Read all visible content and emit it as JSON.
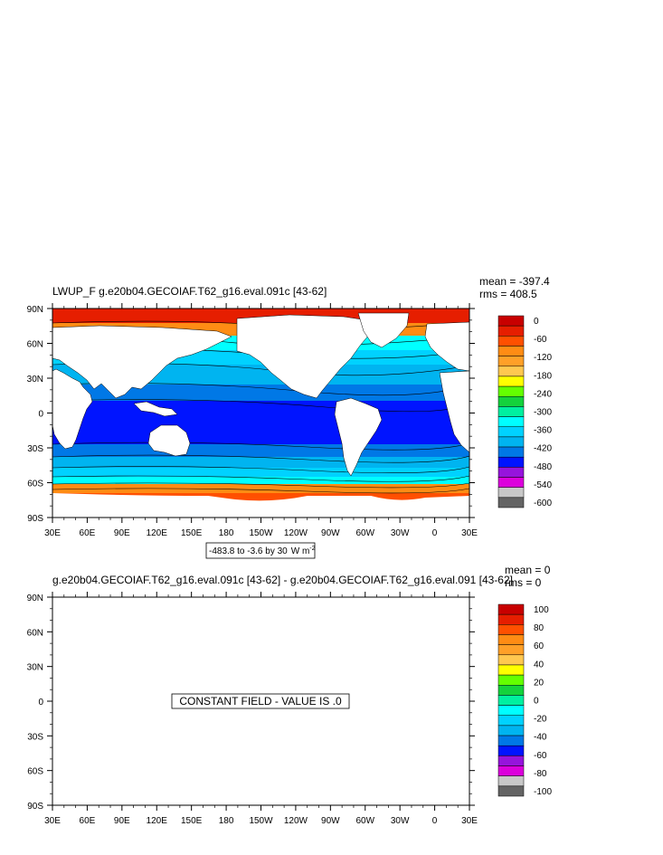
{
  "panels": [
    {
      "title": "LWUP_F g.e20b04.GECOIAF.T62_g16.eval.091c [43-62]",
      "mean_label": "mean = -397.4",
      "rms_label": "rms = 408.5",
      "contour_info": "-483.8 to -3.6 by 30",
      "units_label": "W m",
      "units_exponent": "-2",
      "lat_labels": [
        "90N",
        "60N",
        "30N",
        "0",
        "30S",
        "60S",
        "90S"
      ],
      "lon_labels": [
        "30E",
        "60E",
        "90E",
        "120E",
        "150E",
        "180",
        "150W",
        "120W",
        "90W",
        "60W",
        "30W",
        "0",
        "30E"
      ],
      "colorbar": {
        "labels": [
          "0",
          "-60",
          "-120",
          "-180",
          "-240",
          "-300",
          "-360",
          "-420",
          "-480",
          "-540",
          "-600"
        ],
        "colors": [
          "#c80000",
          "#e61e00",
          "#ff5000",
          "#ff8c14",
          "#ffa028",
          "#ffc850",
          "#ffff00",
          "#64ff00",
          "#14d23c",
          "#00f0a0",
          "#00ffff",
          "#00d2ff",
          "#00b4f0",
          "#0078e6",
          "#0014ff",
          "#9614dc",
          "#dc00dc",
          "#c8c8c8",
          "#646464"
        ]
      },
      "colors": {
        "land": "#ffffff",
        "ocean_tropical": "#0a1ee6",
        "arctic": "#e61e00"
      }
    },
    {
      "title": "g.e20b04.GECOIAF.T62_g16.eval.091c [43-62] - g.e20b04.GECOIAF.T62_g16.eval.091 [43-62]",
      "mean_label": "mean = 0",
      "rms_label": "rms = 0",
      "constant_field_label": "CONSTANT FIELD - VALUE IS .0",
      "lat_labels": [
        "90N",
        "60N",
        "30N",
        "0",
        "30S",
        "60S",
        "90S"
      ],
      "lon_labels": [
        "30E",
        "60E",
        "90E",
        "120E",
        "150E",
        "180",
        "150W",
        "120W",
        "90W",
        "60W",
        "30W",
        "0",
        "30E"
      ],
      "colorbar": {
        "labels": [
          "100",
          "80",
          "60",
          "40",
          "20",
          "0",
          "-20",
          "-40",
          "-60",
          "-80",
          "-100"
        ],
        "colors": [
          "#c80000",
          "#e61e00",
          "#ff5000",
          "#ff8c14",
          "#ffa028",
          "#ffc850",
          "#ffff00",
          "#64ff00",
          "#14d23c",
          "#00f0a0",
          "#00ffff",
          "#00d2ff",
          "#00b4f0",
          "#0078e6",
          "#0014ff",
          "#9614dc",
          "#dc00dc",
          "#c8c8c8",
          "#646464"
        ]
      }
    }
  ]
}
